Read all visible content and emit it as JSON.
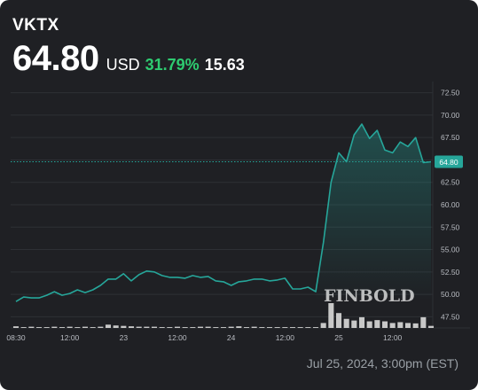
{
  "header": {
    "ticker": "VKTX",
    "price": "64.80",
    "currency": "USD",
    "change_pct": "31.79%",
    "change_abs": "15.63"
  },
  "footer": {
    "timestamp": "Jul 25, 2024, 3:00pm (EST)"
  },
  "watermark": "FINBOLD",
  "colors": {
    "background": "#1f2024",
    "line": "#26a69a",
    "positive": "#2ecc71",
    "grid": "#2e3035",
    "volume": "#c8c8c8",
    "price_tag": "#26a69a"
  },
  "chart_data": {
    "type": "line",
    "ylim": [
      46.25,
      73.75
    ],
    "y_ticks": [
      "47.50",
      "50.00",
      "52.50",
      "55.00",
      "57.50",
      "60.00",
      "62.50",
      "65.00",
      "67.50",
      "70.00",
      "72.50"
    ],
    "y_tick_values": [
      47.5,
      50,
      52.5,
      55,
      57.5,
      60,
      62.5,
      65,
      67.5,
      70,
      72.5
    ],
    "x_ticks": [
      {
        "label": "08:30",
        "index": 0
      },
      {
        "label": "12:00",
        "index": 7
      },
      {
        "label": "23",
        "index": 14
      },
      {
        "label": "12:00",
        "index": 21
      },
      {
        "label": "24",
        "index": 28
      },
      {
        "label": "12:00",
        "index": 35
      },
      {
        "label": "25",
        "index": 42
      },
      {
        "label": "12:00",
        "index": 49
      }
    ],
    "last_price_label": "64.80",
    "last_price": 64.8,
    "n_points": 55,
    "price": [
      49.2,
      49.7,
      49.6,
      49.6,
      49.9,
      50.3,
      49.9,
      50.1,
      50.5,
      50.2,
      50.5,
      51.0,
      51.7,
      51.7,
      52.3,
      51.5,
      52.2,
      52.6,
      52.5,
      52.1,
      51.9,
      51.9,
      51.8,
      52.1,
      51.9,
      52.0,
      51.5,
      51.4,
      51.0,
      51.4,
      51.5,
      51.7,
      51.7,
      51.5,
      51.6,
      51.8,
      50.6,
      50.6,
      50.8,
      50.3,
      55.8,
      62.5,
      65.8,
      64.8,
      67.8,
      69.0,
      67.4,
      68.3,
      66.1,
      65.8,
      67.0,
      66.5,
      67.5,
      64.7,
      64.8
    ],
    "volume": [
      0.4,
      0.2,
      0.3,
      0.2,
      0.2,
      0.3,
      0.2,
      0.3,
      0.2,
      0.3,
      0.2,
      0.3,
      0.8,
      0.6,
      0.5,
      0.4,
      0.3,
      0.3,
      0.3,
      0.2,
      0.2,
      0.3,
      0.2,
      0.2,
      0.3,
      0.3,
      0.2,
      0.2,
      0.3,
      0.4,
      0.2,
      0.3,
      0.2,
      0.2,
      0.2,
      0.2,
      0.2,
      0.2,
      0.2,
      0.2,
      1.2,
      6.0,
      3.6,
      2.2,
      1.8,
      2.6,
      1.6,
      1.9,
      1.6,
      1.2,
      1.4,
      1.2,
      1.1,
      2.6,
      0.5
    ]
  }
}
